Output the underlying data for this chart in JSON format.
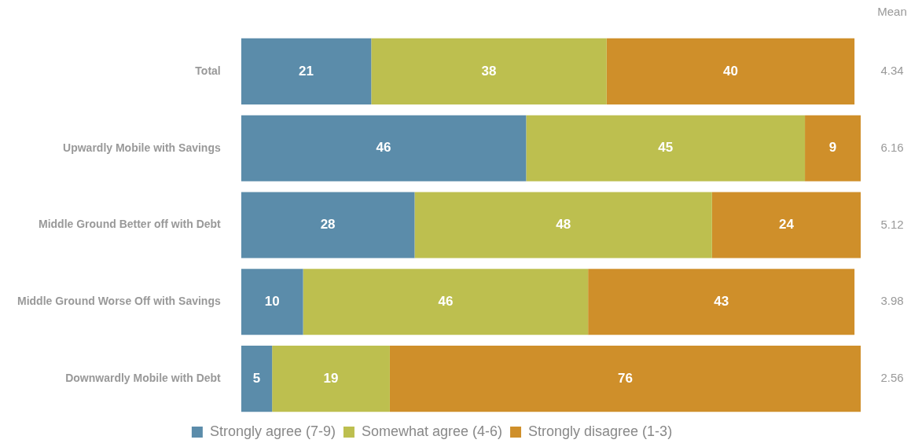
{
  "chart_data": {
    "type": "bar",
    "orientation": "horizontal",
    "stacked": true,
    "categories": [
      "Total",
      "Upwardly Mobile with Savings",
      "Middle Ground Better off with Debt",
      "Middle Ground Worse Off with Savings",
      "Downwardly Mobile with Debt"
    ],
    "series": [
      {
        "name": "Strongly agree (7-9)",
        "color": "#5b8caa",
        "values": [
          21,
          46,
          28,
          10,
          5
        ]
      },
      {
        "name": "Somewhat agree (4-6)",
        "color": "#bdbf4f",
        "values": [
          38,
          45,
          48,
          46,
          19
        ]
      },
      {
        "name": "Strongly disagree (1-3)",
        "color": "#cf8f2a",
        "values": [
          40,
          9,
          24,
          43,
          76
        ]
      }
    ],
    "xlim": [
      0,
      100
    ],
    "tick_labels": "y",
    "grid": false,
    "data_labels": true,
    "legend": "bottom",
    "annotations": [
      "Mean",
      "4.34",
      "6.16",
      "5.12",
      "3.98",
      "2.56"
    ]
  }
}
